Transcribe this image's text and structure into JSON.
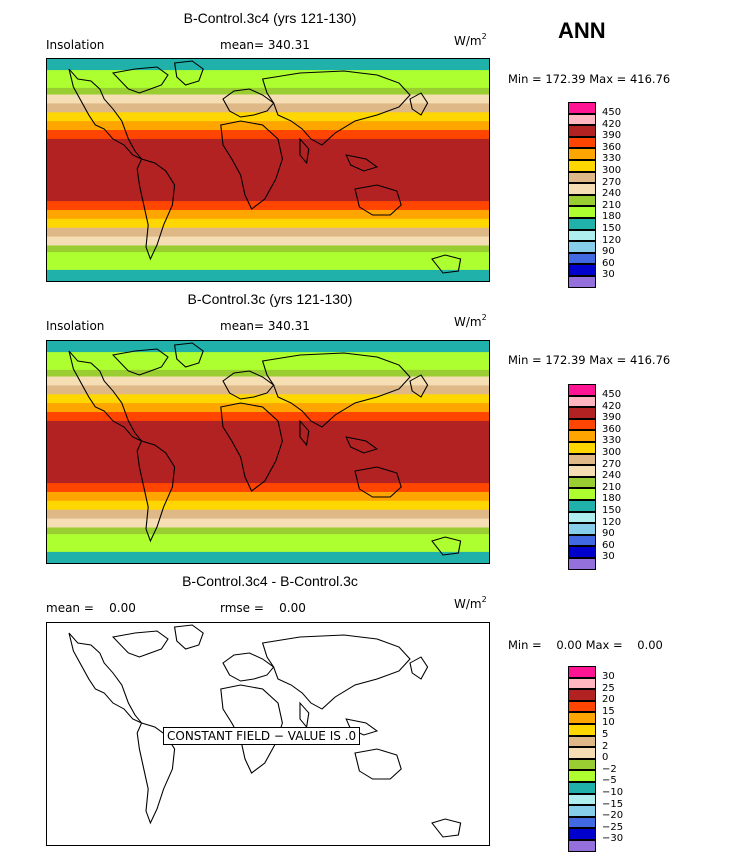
{
  "season": "ANN",
  "units_text": "W/m",
  "units_exp": "2",
  "palette": [
    "#ff1493",
    "#ffb6c1",
    "#b22222",
    "#ff4500",
    "#ffa500",
    "#ffd700",
    "#deb887",
    "#f5deb3",
    "#9acd32",
    "#adff2f",
    "#20b2aa",
    "#afeeee",
    "#87ceeb",
    "#4169e1",
    "#0000cd",
    "#9370db"
  ],
  "land_paths": [
    "M 20 10 L 28 20 L 40 22 L 48 30 L 52 40 L 60 50 L 68 62 L 74 80 L 80 92 L 86 100 L 78 96 L 70 86 L 60 80 L 52 70 L 44 66 L 38 56 L 30 40 L 24 28 Z",
    "M 60 14 L 80 10 L 100 8 L 110 16 L 104 26 L 94 30 L 84 34 L 74 30 Z",
    "M 86 100 L 98 104 L 108 112 L 116 126 L 114 146 L 106 166 L 100 186 L 94 200 L 90 188 L 92 166 L 88 146 L 84 126 L 82 110 Z",
    "M 116 4 L 132 2 L 142 10 L 138 22 L 126 26 L 118 18 Z",
    "M 160 40 L 170 32 L 184 30 L 196 36 L 206 44 L 200 52 L 188 56 L 176 58 L 166 52 Z",
    "M 158 66 L 176 62 L 196 66 L 210 80 L 214 100 L 208 120 L 198 140 L 186 150 L 180 136 L 176 116 L 168 100 L 160 86 Z",
    "M 196 20 L 230 14 L 270 12 L 300 16 L 320 24 L 330 36 L 320 48 L 300 56 L 280 62 L 262 74 L 250 86 L 240 80 L 232 70 L 222 62 L 210 56 L 206 44 L 200 34 Z",
    "M 230 80 L 238 90 L 236 104 L 230 96 Z",
    "M 280 130 L 300 126 L 318 132 L 322 146 L 312 156 L 296 156 L 284 148 Z",
    "M 272 96 L 290 100 L 300 108 L 288 112 L 276 106 Z",
    "M 330 40 L 340 34 L 346 44 L 340 56 L 332 50 Z",
    "M 350 200 L 362 196 L 376 200 L 374 212 L 360 214 Z"
  ],
  "panels": [
    {
      "title": "B-Control.3c4 (yrs 121-130)",
      "left_label": "Insolation",
      "mid_label": "mean= 340.31",
      "minmax": "Min = 172.39 Max = 416.76",
      "levels": [
        "450",
        "420",
        "390",
        "360",
        "330",
        "300",
        "270",
        "240",
        "210",
        "180",
        "150",
        "120",
        "90",
        "60",
        "30"
      ],
      "band_colors": [
        "#20b2aa",
        "#adff2f",
        "#9acd32",
        "#f5deb3",
        "#deb887",
        "#ffd700",
        "#ffa500",
        "#ff4500",
        "#b22222",
        "#b22222",
        "#b22222",
        "#ff4500",
        "#ffa500",
        "#ffd700",
        "#deb887",
        "#f5deb3",
        "#9acd32",
        "#adff2f",
        "#20b2aa"
      ],
      "band_fractions": [
        0.05,
        0.08,
        0.03,
        0.04,
        0.04,
        0.04,
        0.04,
        0.04,
        0.08,
        0.12,
        0.08,
        0.04,
        0.04,
        0.04,
        0.04,
        0.04,
        0.03,
        0.08,
        0.05
      ],
      "constant_text": ""
    },
    {
      "title": "B-Control.3c (yrs 121-130)",
      "left_label": "Insolation",
      "mid_label": "mean= 340.31",
      "minmax": "Min = 172.39 Max = 416.76",
      "levels": [
        "450",
        "420",
        "390",
        "360",
        "330",
        "300",
        "270",
        "240",
        "210",
        "180",
        "150",
        "120",
        "90",
        "60",
        "30"
      ],
      "band_colors": [
        "#20b2aa",
        "#adff2f",
        "#9acd32",
        "#f5deb3",
        "#deb887",
        "#ffd700",
        "#ffa500",
        "#ff4500",
        "#b22222",
        "#b22222",
        "#b22222",
        "#ff4500",
        "#ffa500",
        "#ffd700",
        "#deb887",
        "#f5deb3",
        "#9acd32",
        "#adff2f",
        "#20b2aa"
      ],
      "band_fractions": [
        0.05,
        0.08,
        0.03,
        0.04,
        0.04,
        0.04,
        0.04,
        0.04,
        0.08,
        0.12,
        0.08,
        0.04,
        0.04,
        0.04,
        0.04,
        0.04,
        0.03,
        0.08,
        0.05
      ],
      "constant_text": ""
    },
    {
      "title": "B-Control.3c4 - B-Control.3c",
      "left_label": "mean =    0.00",
      "mid_label": "rmse =    0.00",
      "minmax": "Min =    0.00 Max =    0.00",
      "levels": [
        "30",
        "25",
        "20",
        "15",
        "10",
        "5",
        "2",
        "0",
        "−2",
        "−5",
        "−10",
        "−15",
        "−20",
        "−25",
        "−30"
      ],
      "band_colors": [],
      "band_fractions": [],
      "constant_text": "CONSTANT FIELD − VALUE IS .0"
    }
  ]
}
